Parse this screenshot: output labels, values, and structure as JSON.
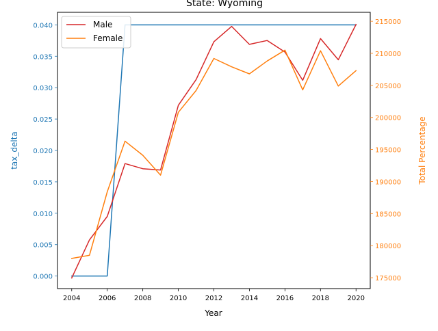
{
  "chart_data": {
    "type": "line",
    "title": "State: Wyoming",
    "xlabel": "Year",
    "ylabel_left": "tax_delta",
    "ylabel_right": "Total Percentage",
    "x": [
      2004,
      2005,
      2006,
      2007,
      2008,
      2009,
      2010,
      2011,
      2012,
      2013,
      2014,
      2015,
      2016,
      2017,
      2018,
      2019,
      2020
    ],
    "xlim": [
      2003.2,
      2020.8
    ],
    "xticks": [
      2004,
      2006,
      2008,
      2010,
      2012,
      2014,
      2016,
      2018,
      2020
    ],
    "left_axis": {
      "ylim": [
        -0.002,
        0.042
      ],
      "ticks": [
        0.0,
        0.005,
        0.01,
        0.015,
        0.02,
        0.025,
        0.03,
        0.035,
        0.04
      ],
      "tick_labels": [
        "0.000",
        "0.005",
        "0.010",
        "0.015",
        "0.020",
        "0.025",
        "0.030",
        "0.035",
        "0.040"
      ],
      "color": "#1f77b4"
    },
    "right_axis": {
      "ylim": [
        173300,
        216400
      ],
      "ticks": [
        175000,
        180000,
        185000,
        190000,
        195000,
        200000,
        205000,
        210000,
        215000
      ],
      "tick_labels": [
        "175000",
        "180000",
        "185000",
        "190000",
        "195000",
        "200000",
        "205000",
        "210000",
        "215000"
      ],
      "color": "#ff7f0e"
    },
    "series": [
      {
        "axis": "left",
        "color": "#1f77b4",
        "values": [
          0.0,
          0.0,
          0.0,
          0.04,
          0.04,
          0.04,
          0.04,
          0.04,
          0.04,
          0.04,
          0.04,
          0.04,
          0.04,
          0.04,
          0.04,
          0.04,
          0.04
        ]
      },
      {
        "name": "Male",
        "axis": "right",
        "color": "#d62728",
        "values": [
          174950,
          180900,
          184550,
          192800,
          192000,
          191800,
          201900,
          205900,
          211800,
          214200,
          211400,
          212000,
          210200,
          205800,
          212300,
          209000,
          214500
        ]
      },
      {
        "name": "Female",
        "axis": "right",
        "color": "#ff7f0e",
        "values": [
          178000,
          178500,
          188400,
          196300,
          194100,
          191000,
          200800,
          204200,
          209200,
          207900,
          206800,
          208800,
          210500,
          204300,
          210400,
          204900,
          207300
        ]
      }
    ],
    "legend": {
      "placement": "top-left",
      "entries": [
        "Male",
        "Female"
      ]
    },
    "grid": false
  }
}
